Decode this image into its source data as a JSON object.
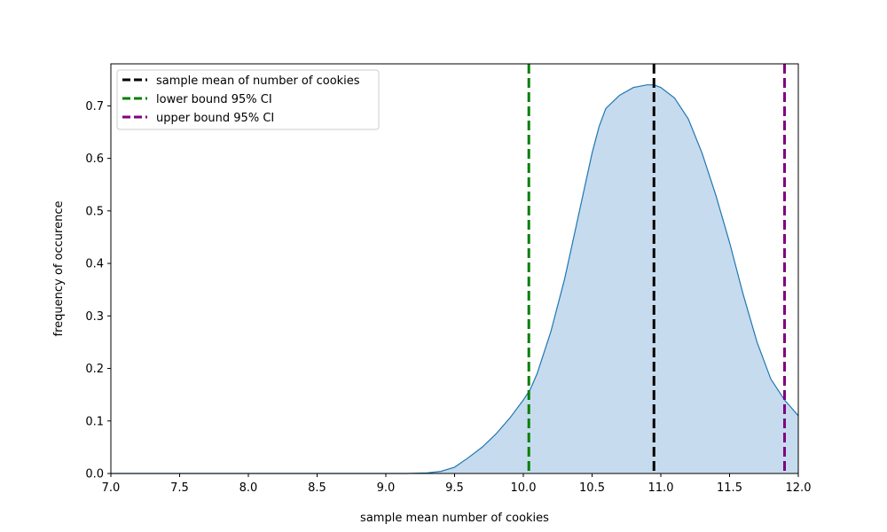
{
  "chart_data": {
    "type": "area",
    "title": "",
    "xlabel": "sample mean number of cookies",
    "ylabel": "frequency of occurence",
    "xlim": [
      7.0,
      12.0
    ],
    "ylim": [
      0.0,
      0.78
    ],
    "xticks": [
      "7.0",
      "7.5",
      "8.0",
      "8.5",
      "9.0",
      "9.5",
      "10.0",
      "10.5",
      "11.0",
      "11.5",
      "12.0"
    ],
    "yticks": [
      "0.0",
      "0.1",
      "0.2",
      "0.3",
      "0.4",
      "0.5",
      "0.6",
      "0.7"
    ],
    "grid": false,
    "legend_position": "top-left",
    "density": {
      "color": "#1f77b4",
      "fill_color": "#c6dbed",
      "x": [
        9.15,
        9.3,
        9.4,
        9.5,
        9.6,
        9.7,
        9.8,
        9.9,
        10.0,
        10.05,
        10.1,
        10.2,
        10.3,
        10.4,
        10.5,
        10.55,
        10.6,
        10.7,
        10.8,
        10.9,
        10.95,
        11.0,
        11.1,
        11.2,
        11.3,
        11.4,
        11.5,
        11.6,
        11.7,
        11.8,
        11.9,
        12.0
      ],
      "y": [
        0.0,
        0.001,
        0.004,
        0.012,
        0.03,
        0.05,
        0.075,
        0.105,
        0.14,
        0.16,
        0.19,
        0.27,
        0.37,
        0.49,
        0.61,
        0.66,
        0.695,
        0.72,
        0.735,
        0.74,
        0.74,
        0.735,
        0.715,
        0.675,
        0.61,
        0.53,
        0.44,
        0.34,
        0.25,
        0.18,
        0.14,
        0.11
      ]
    },
    "vlines": [
      {
        "name": "sample mean of number of cookies",
        "x": 10.95,
        "color": "#000000"
      },
      {
        "name": "lower bound 95% CI",
        "x": 10.04,
        "color": "#008000"
      },
      {
        "name": "upper bound 95% CI",
        "x": 11.9,
        "color": "#800080"
      }
    ]
  }
}
